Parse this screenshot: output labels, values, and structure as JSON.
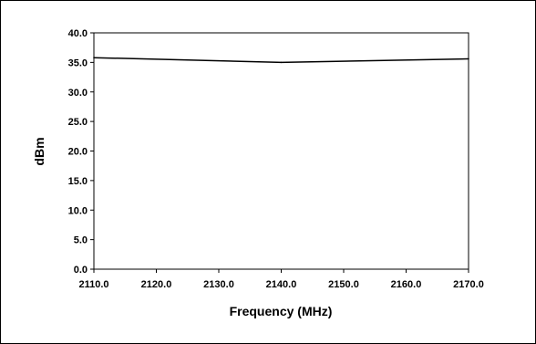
{
  "chart_data": {
    "type": "line",
    "title": "",
    "xlabel": "Frequency (MHz)",
    "ylabel": "dBm",
    "xlim": [
      2110.0,
      2170.0
    ],
    "ylim": [
      0.0,
      40.0
    ],
    "x_ticks": [
      "2110.0",
      "2120.0",
      "2130.0",
      "2140.0",
      "2150.0",
      "2160.0",
      "2170.0"
    ],
    "y_ticks": [
      "0.0",
      "5.0",
      "10.0",
      "15.0",
      "20.0",
      "25.0",
      "30.0",
      "35.0",
      "40.0"
    ],
    "grid": false,
    "legend": "none",
    "series": [
      {
        "x": [
          2110.0,
          2140.0,
          2170.0
        ],
        "y": [
          35.8,
          35.0,
          35.6
        ],
        "color": "#000000"
      }
    ]
  }
}
